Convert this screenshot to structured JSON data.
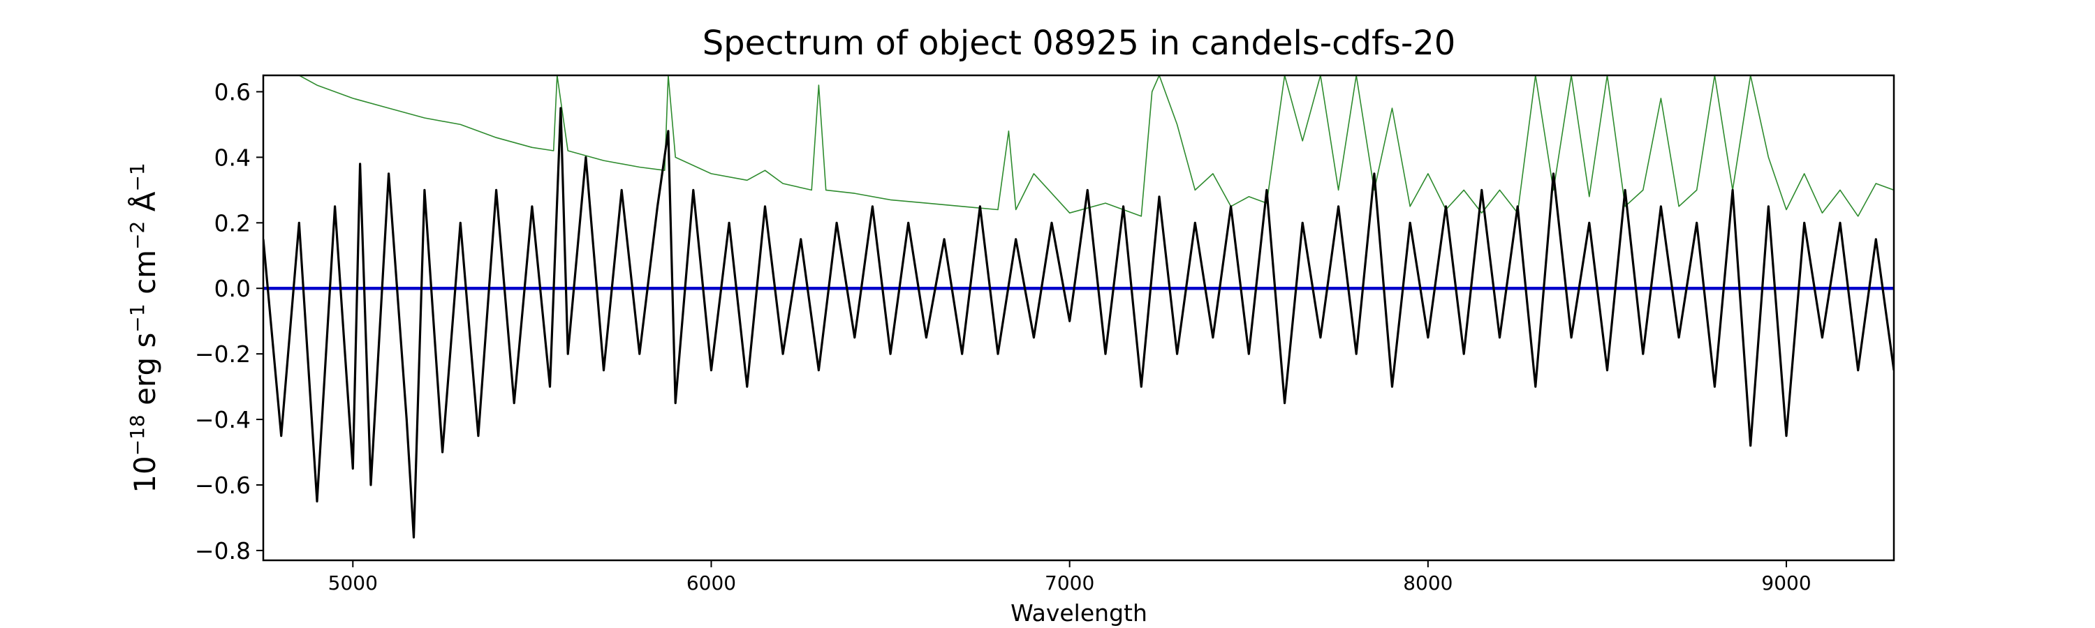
{
  "chart_data": {
    "type": "line",
    "title": "Spectrum of object 08925 in candels-cdfs-20",
    "xlabel": "Wavelength",
    "ylabel": {
      "prefix": "10",
      "exp1": "−18",
      "unit1": " erg s",
      "exp2": "−1",
      "unit2": " cm",
      "exp3": "−2",
      "unit3": " Å",
      "exp4": "−1"
    },
    "xlim": [
      4750,
      9300
    ],
    "ylim": [
      -0.83,
      0.65
    ],
    "xticks": [
      5000,
      6000,
      7000,
      8000,
      9000
    ],
    "xtick_labels": [
      "5000",
      "6000",
      "7000",
      "8000",
      "9000"
    ],
    "yticks": [
      -0.8,
      -0.6,
      -0.4,
      -0.2,
      0.0,
      0.2,
      0.4,
      0.6
    ],
    "ytick_labels": [
      "−0.8",
      "−0.6",
      "−0.4",
      "−0.2",
      "0.0",
      "0.2",
      "0.4",
      "0.6"
    ],
    "grid": false,
    "colors": {
      "flux": "#000000",
      "error": "#2e8b2e",
      "zero": "#0000cc"
    },
    "series": [
      {
        "role": "flux",
        "x": [
          4750,
          4800,
          4850,
          4900,
          4950,
          5000,
          5020,
          5050,
          5100,
          5150,
          5170,
          5200,
          5250,
          5300,
          5350,
          5400,
          5450,
          5500,
          5550,
          5580,
          5600,
          5650,
          5700,
          5750,
          5800,
          5850,
          5880,
          5900,
          5950,
          6000,
          6050,
          6100,
          6150,
          6200,
          6250,
          6300,
          6350,
          6400,
          6450,
          6500,
          6550,
          6600,
          6650,
          6700,
          6750,
          6800,
          6850,
          6900,
          6950,
          7000,
          7050,
          7100,
          7150,
          7200,
          7250,
          7300,
          7350,
          7400,
          7450,
          7500,
          7550,
          7600,
          7650,
          7700,
          7750,
          7800,
          7850,
          7900,
          7950,
          8000,
          8050,
          8100,
          8150,
          8200,
          8250,
          8300,
          8350,
          8400,
          8450,
          8500,
          8550,
          8600,
          8650,
          8700,
          8750,
          8800,
          8850,
          8900,
          8950,
          9000,
          9050,
          9100,
          9150,
          9200,
          9250,
          9300
        ],
        "y": [
          0.15,
          -0.45,
          0.2,
          -0.65,
          0.25,
          -0.55,
          0.38,
          -0.6,
          0.35,
          -0.4,
          -0.76,
          0.3,
          -0.5,
          0.2,
          -0.45,
          0.3,
          -0.35,
          0.25,
          -0.3,
          0.55,
          -0.2,
          0.4,
          -0.25,
          0.3,
          -0.2,
          0.25,
          0.48,
          -0.35,
          0.3,
          -0.25,
          0.2,
          -0.3,
          0.25,
          -0.2,
          0.15,
          -0.25,
          0.2,
          -0.15,
          0.25,
          -0.2,
          0.2,
          -0.15,
          0.15,
          -0.2,
          0.25,
          -0.2,
          0.15,
          -0.15,
          0.2,
          -0.1,
          0.3,
          -0.2,
          0.25,
          -0.3,
          0.28,
          -0.2,
          0.2,
          -0.15,
          0.25,
          -0.2,
          0.3,
          -0.35,
          0.2,
          -0.15,
          0.25,
          -0.2,
          0.35,
          -0.3,
          0.2,
          -0.15,
          0.25,
          -0.2,
          0.3,
          -0.15,
          0.25,
          -0.3,
          0.35,
          -0.15,
          0.2,
          -0.25,
          0.3,
          -0.2,
          0.25,
          -0.15,
          0.2,
          -0.3,
          0.3,
          -0.48,
          0.25,
          -0.45,
          0.2,
          -0.15,
          0.2,
          -0.25,
          0.15,
          -0.25
        ]
      },
      {
        "role": "error",
        "x": [
          4850,
          4900,
          5000,
          5100,
          5200,
          5300,
          5400,
          5500,
          5560,
          5570,
          5600,
          5700,
          5800,
          5870,
          5880,
          5900,
          6000,
          6100,
          6150,
          6200,
          6280,
          6300,
          6320,
          6400,
          6500,
          6600,
          6700,
          6800,
          6830,
          6850,
          6900,
          7000,
          7100,
          7200,
          7230,
          7250,
          7300,
          7350,
          7400,
          7450,
          7500,
          7550,
          7600,
          7650,
          7700,
          7750,
          7800,
          7850,
          7900,
          7950,
          8000,
          8050,
          8100,
          8150,
          8200,
          8250,
          8300,
          8350,
          8400,
          8450,
          8500,
          8550,
          8600,
          8650,
          8700,
          8750,
          8800,
          8850,
          8900,
          8950,
          9000,
          9050,
          9100,
          9150,
          9200,
          9250,
          9300
        ],
        "y": [
          0.65,
          0.62,
          0.58,
          0.55,
          0.52,
          0.5,
          0.46,
          0.43,
          0.42,
          0.65,
          0.42,
          0.39,
          0.37,
          0.36,
          0.65,
          0.4,
          0.35,
          0.33,
          0.36,
          0.32,
          0.3,
          0.62,
          0.3,
          0.29,
          0.27,
          0.26,
          0.25,
          0.24,
          0.48,
          0.24,
          0.35,
          0.23,
          0.26,
          0.22,
          0.6,
          0.65,
          0.5,
          0.3,
          0.35,
          0.25,
          0.28,
          0.26,
          0.65,
          0.45,
          0.65,
          0.3,
          0.65,
          0.3,
          0.55,
          0.25,
          0.35,
          0.24,
          0.3,
          0.23,
          0.3,
          0.23,
          0.65,
          0.3,
          0.65,
          0.28,
          0.65,
          0.25,
          0.3,
          0.58,
          0.25,
          0.3,
          0.65,
          0.3,
          0.65,
          0.4,
          0.24,
          0.35,
          0.23,
          0.3,
          0.22,
          0.32,
          0.3
        ]
      },
      {
        "role": "zero",
        "x": [
          4750,
          9300
        ],
        "y": [
          0.0,
          0.0
        ]
      }
    ]
  }
}
